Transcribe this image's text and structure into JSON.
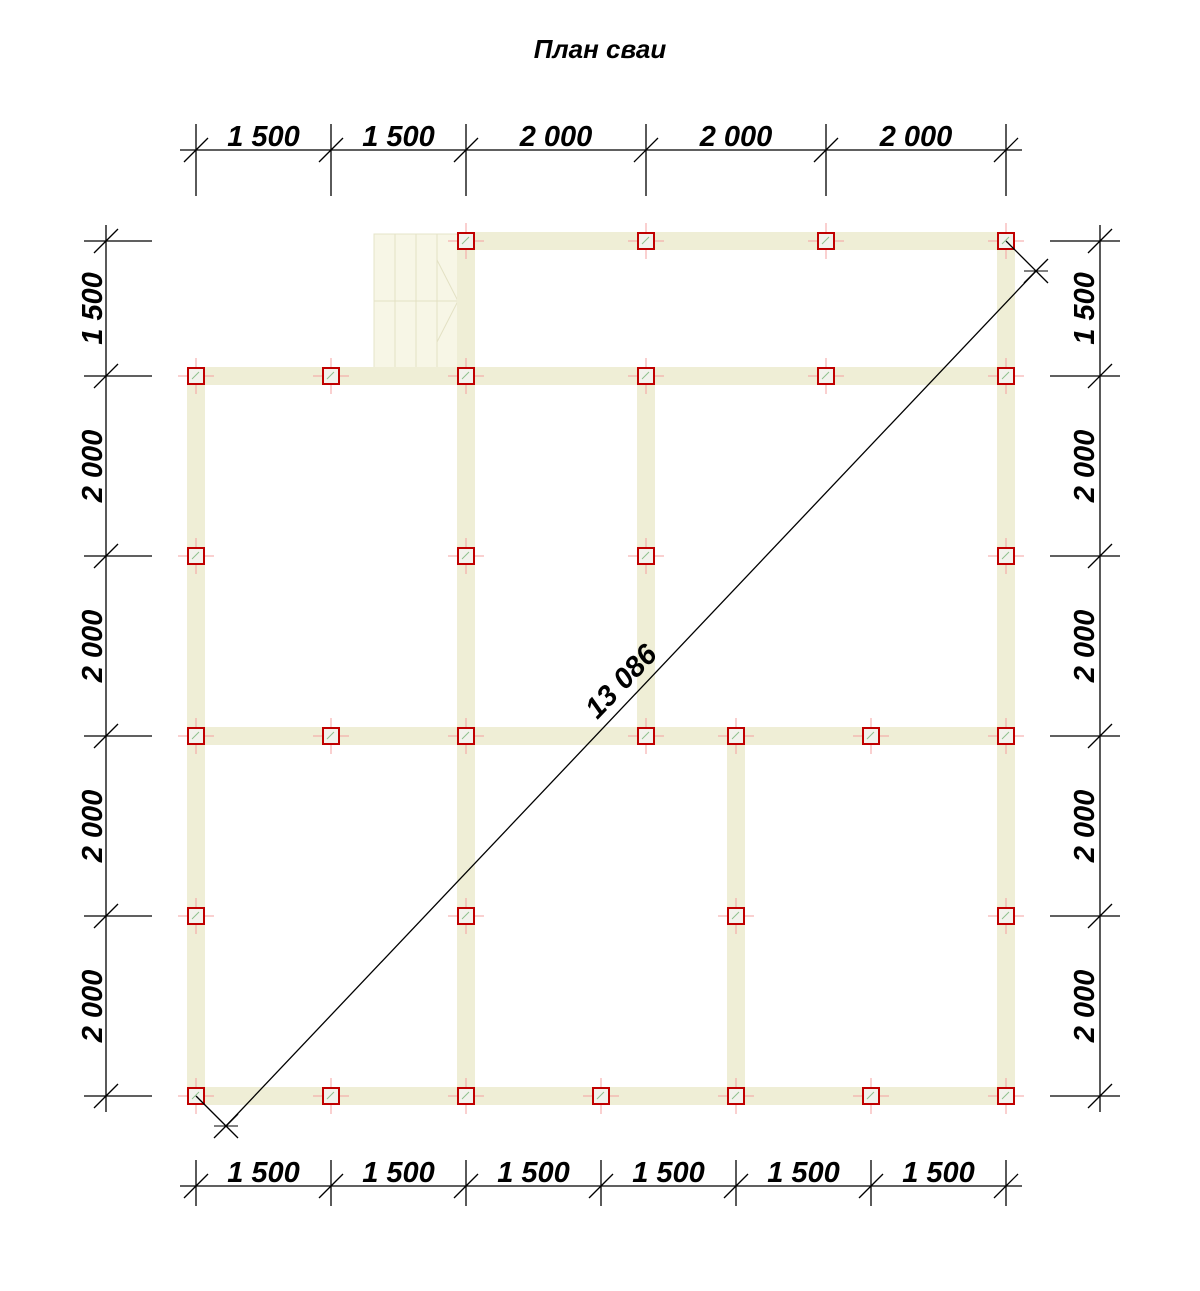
{
  "title": "План сваи",
  "dimensions": {
    "top": [
      "1 500",
      "1 500",
      "2 000",
      "2 000",
      "2 000"
    ],
    "bottom": [
      "1 500",
      "1 500",
      "1 500",
      "1 500",
      "1 500",
      "1 500"
    ],
    "left": [
      "1 500",
      "2 000",
      "2 000",
      "2 000",
      "2 000"
    ],
    "right": [
      "1 500",
      "2 000",
      "2 000",
      "2 000",
      "2 000"
    ]
  },
  "diagonal_label": "13 086",
  "colors": {
    "beam": "#EFEED6",
    "pile": "#C00000",
    "stair": "#F7F6E6",
    "line": "#000000"
  }
}
